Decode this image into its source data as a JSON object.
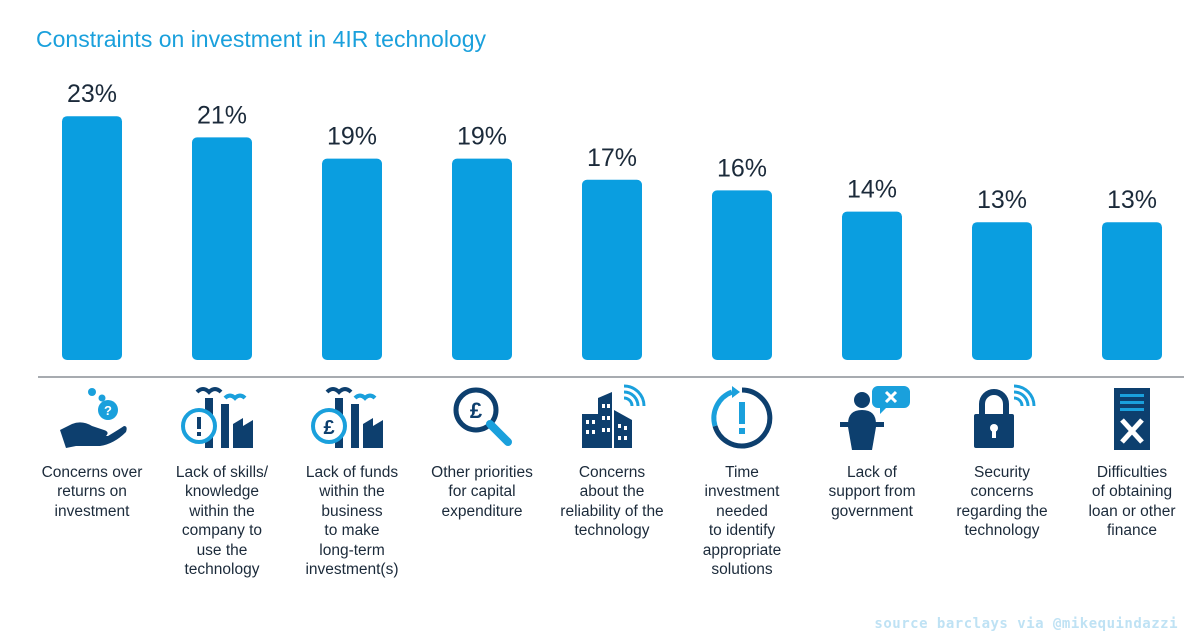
{
  "chart_data": {
    "type": "bar",
    "title": "Constraints on investment in 4IR technology",
    "categories": [
      "Concerns over\nreturns on\ninvestment",
      "Lack of skills/\nknowledge\nwithin the\ncompany to\nuse the\ntechnology",
      "Lack of funds\nwithin the\nbusiness\nto make\nlong-term\ninvestment(s)",
      "Other priorities\nfor capital\nexpenditure",
      "Concerns\nabout the\nreliability of the\ntechnology",
      "Time\ninvestment\nneeded\nto identify\nappropriate\nsolutions",
      "Lack of\nsupport from\ngovernment",
      "Security\nconcerns\nregarding the\ntechnology",
      "Difficulties\nof obtaining\nloan or other\nfinance"
    ],
    "values": [
      23,
      21,
      19,
      19,
      17,
      16,
      14,
      13,
      13
    ],
    "value_labels": [
      "23%",
      "21%",
      "19%",
      "19%",
      "17%",
      "16%",
      "14%",
      "13%",
      "13%"
    ],
    "unit": "%",
    "xlabel": "",
    "ylabel": "",
    "bar_color": "#0a9ee0",
    "grid": false
  },
  "icons": [
    "hand-coins-icon",
    "factory-alert-icon",
    "factory-pound-icon",
    "pound-magnifier-icon",
    "buildings-signal-icon",
    "clock-alert-icon",
    "speaker-podium-icon",
    "padlock-signal-icon",
    "document-cross-icon"
  ],
  "colors": {
    "title": "#1aa0dc",
    "bar": "#0a9ee0",
    "icon_dark": "#0d3f6e",
    "icon_light": "#1aa0dc",
    "text": "#1b2a3a",
    "source": "#bfe2f4"
  },
  "source": "source barclays via @mikequindazzi"
}
